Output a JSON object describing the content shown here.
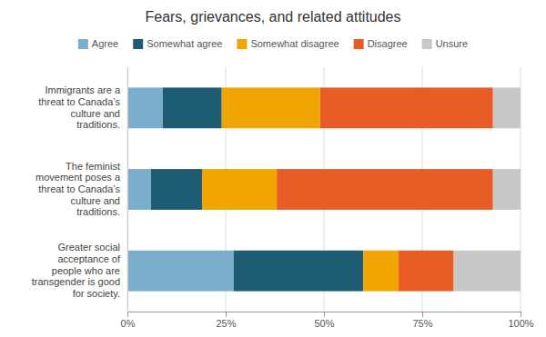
{
  "chart_data": {
    "type": "bar",
    "orientation": "horizontal",
    "stacked": true,
    "title": "Fears, grievances, and related attitudes",
    "categories": [
      "Immigrants are a\nthreat to Canada’s\nculture and\ntraditions.",
      "The feminist\nmovement poses a\nthreat to Canada’s\nculture and\ntraditions.",
      "Greater social\nacceptance of\npeople who are\ntransgender is good\nfor society."
    ],
    "series": [
      {
        "name": "Agree",
        "color": "#7aaecc",
        "values": [
          9,
          6,
          27
        ]
      },
      {
        "name": "Somewhat agree",
        "color": "#1d5c73",
        "values": [
          15,
          13,
          33
        ]
      },
      {
        "name": "Somewhat disagree",
        "color": "#f0a500",
        "values": [
          25,
          19,
          9
        ]
      },
      {
        "name": "Disagree",
        "color": "#e85d26",
        "values": [
          44,
          55,
          14
        ]
      },
      {
        "name": "Unsure",
        "color": "#c8c8c8",
        "values": [
          7,
          7,
          17
        ]
      }
    ],
    "xlim": [
      0,
      100
    ],
    "xticks": [
      {
        "value": 0,
        "label": "0%"
      },
      {
        "value": 25,
        "label": "25%"
      },
      {
        "value": 50,
        "label": "50%"
      },
      {
        "value": 75,
        "label": "75%"
      },
      {
        "value": 100,
        "label": "100%"
      }
    ],
    "grid": true,
    "legend": "top"
  }
}
